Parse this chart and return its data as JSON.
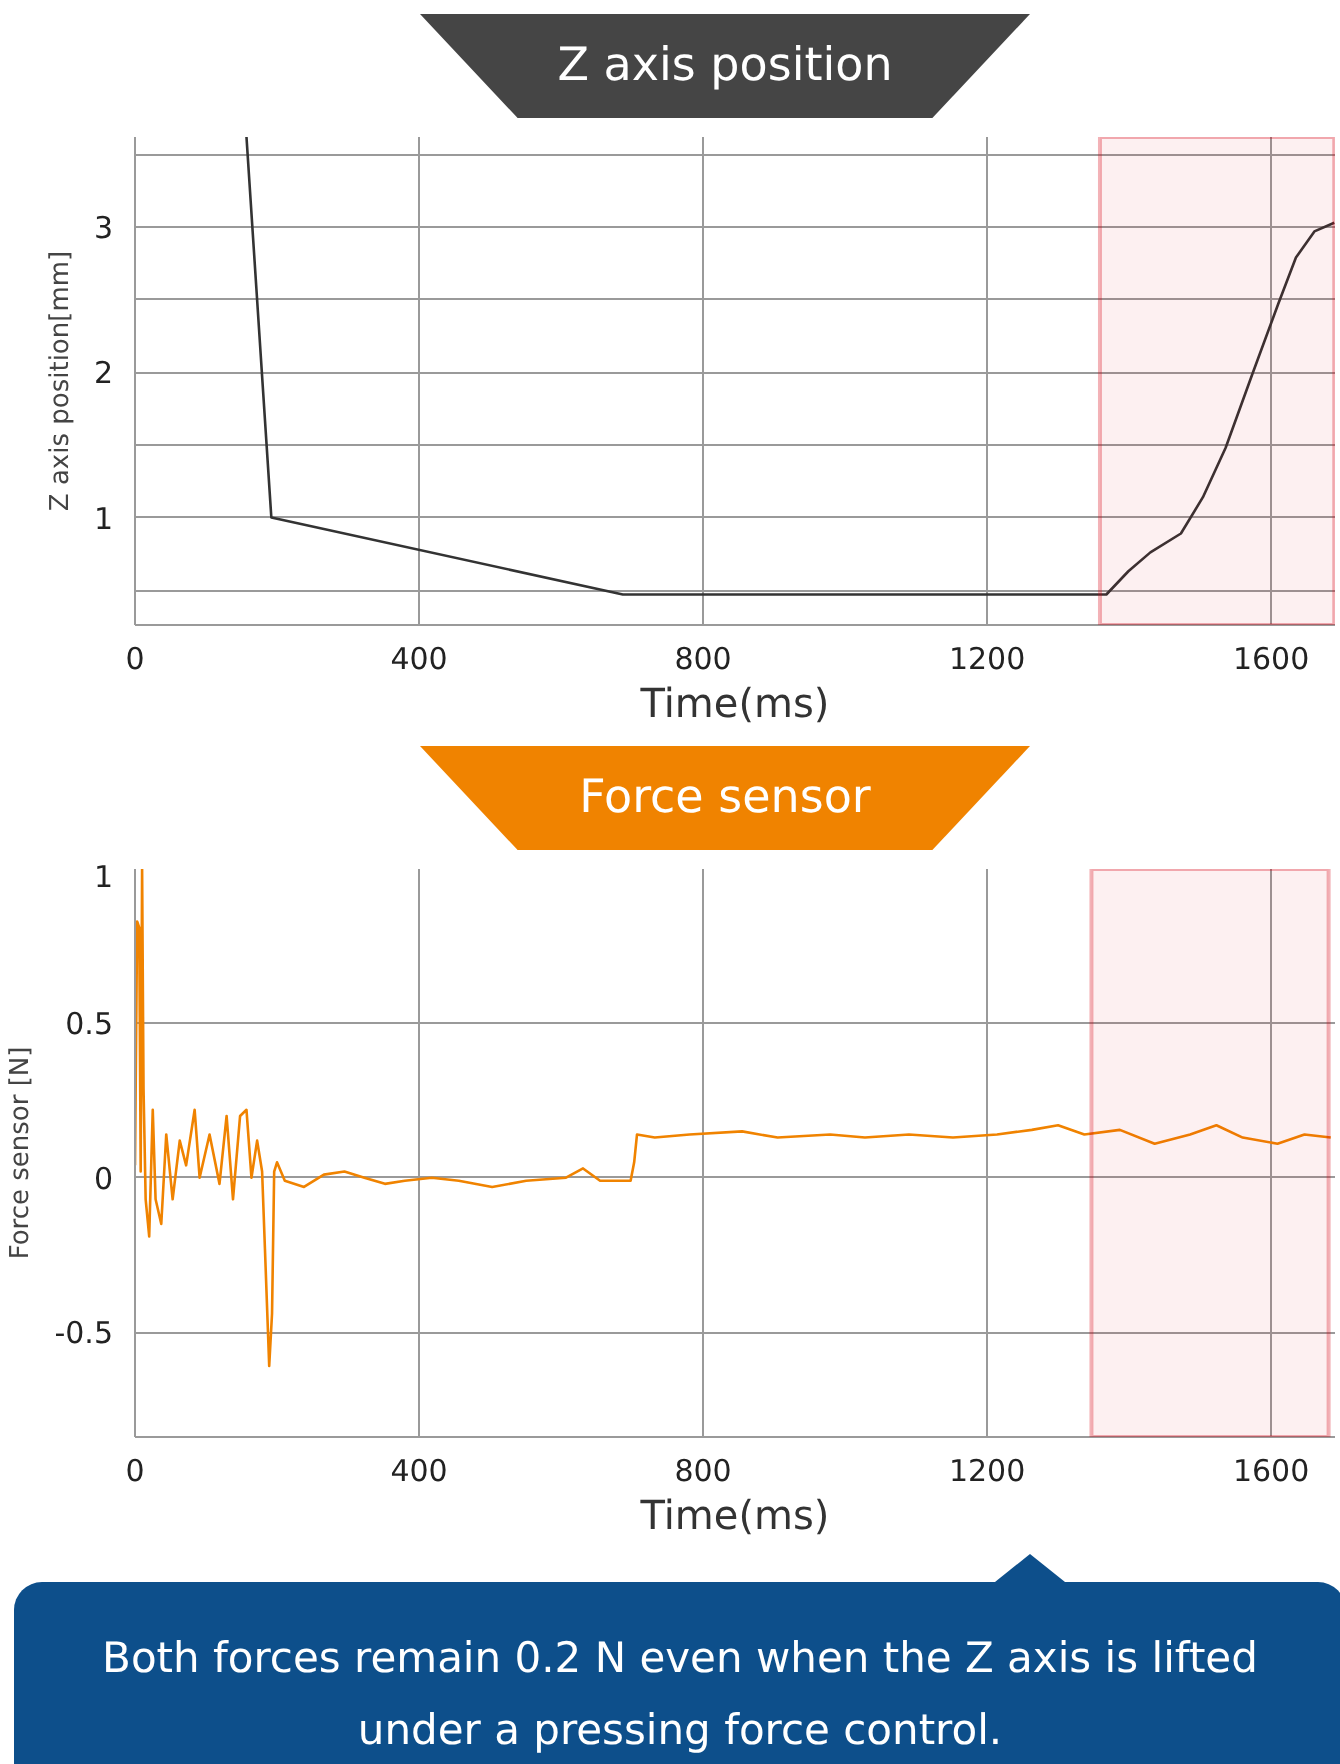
{
  "chart_data": [
    {
      "type": "line",
      "title": "Z axis position",
      "xlabel": "Time(ms)",
      "ylabel": "Z axis position[mm]",
      "color": "#333333",
      "x": [
        157,
        192,
        687,
        1368,
        1399,
        1430,
        1473,
        1504,
        1536,
        1573,
        1610,
        1635,
        1661,
        1689
      ],
      "values": [
        3.62,
        1.0,
        0.47,
        0.47,
        0.63,
        0.76,
        0.89,
        1.14,
        1.48,
        1.98,
        2.47,
        2.79,
        2.97,
        3.03
      ],
      "xlim": [
        0,
        1690
      ],
      "ylim": [
        0.26,
        3.62
      ],
      "xticks": [
        0,
        400,
        800,
        1200,
        1600
      ],
      "yticks": [
        {
          "value": 0.5,
          "label": null
        },
        1,
        {
          "value": 1.5,
          "label": null
        },
        2,
        {
          "value": 2.5,
          "label": null
        },
        3,
        {
          "value": 3.5,
          "label": null
        }
      ],
      "grid": true,
      "bands": [
        {
          "axis": "x",
          "from": 1359,
          "to": 1689,
          "color": "#d7000f"
        }
      ]
    },
    {
      "type": "line",
      "title": "Force sensor",
      "xlabel": "Time(ms)",
      "ylabel": "Force sensor [N]",
      "color": "#f08300",
      "x": [
        0,
        3,
        6,
        8,
        10,
        12,
        15,
        20,
        25,
        29,
        37,
        44,
        53,
        63,
        72,
        84,
        91,
        105,
        119,
        129,
        138,
        148,
        157,
        164,
        172,
        179,
        183,
        189,
        193,
        196,
        200,
        211,
        238,
        266,
        295,
        323,
        352,
        380,
        418,
        456,
        503,
        551,
        607,
        631,
        655,
        698,
        703,
        707,
        732,
        781,
        855,
        905,
        979,
        1028,
        1090,
        1152,
        1214,
        1263,
        1300,
        1337,
        1387,
        1436,
        1486,
        1523,
        1560,
        1609,
        1647,
        1684
      ],
      "values": [
        0.04,
        0.83,
        0.81,
        0.02,
        1.0,
        0.29,
        -0.07,
        -0.19,
        0.22,
        -0.07,
        -0.15,
        0.14,
        -0.07,
        0.12,
        0.04,
        0.22,
        0.0,
        0.14,
        -0.02,
        0.2,
        -0.07,
        0.2,
        0.22,
        0.0,
        0.12,
        0.02,
        -0.23,
        -0.61,
        -0.44,
        0.02,
        0.05,
        -0.01,
        -0.03,
        0.01,
        0.02,
        0.0,
        -0.02,
        -0.01,
        0.0,
        -0.01,
        -0.03,
        -0.01,
        0.0,
        0.03,
        -0.01,
        -0.01,
        0.05,
        0.14,
        0.13,
        0.14,
        0.15,
        0.13,
        0.14,
        0.13,
        0.14,
        0.13,
        0.14,
        0.155,
        0.17,
        0.14,
        0.155,
        0.11,
        0.14,
        0.17,
        0.13,
        0.11,
        0.14,
        0.13
      ],
      "xlim": [
        0,
        1690
      ],
      "ylim": [
        -0.84,
        1
      ],
      "xticks": [
        0,
        400,
        800,
        1200,
        1600
      ],
      "yticks": [
        -0.5,
        0,
        0.5,
        1
      ],
      "grid": true,
      "bands": [
        {
          "axis": "x",
          "from": 1347,
          "to": 1681,
          "color": "#d7000f"
        }
      ],
      "annotations": [
        "Both forces remain 0.2 N even when the Z axis is lifted under a pressing force control."
      ]
    }
  ]
}
